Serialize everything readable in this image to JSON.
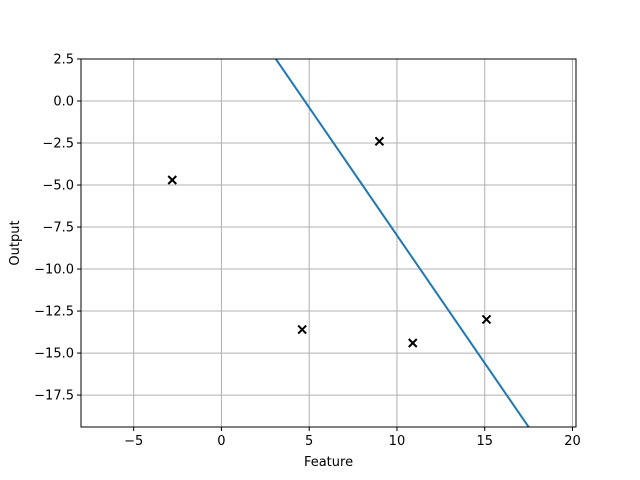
{
  "chart_data": {
    "type": "scatter",
    "title": "",
    "xlabel": "Feature",
    "ylabel": "Output",
    "xlim": [
      -8.0,
      20.2
    ],
    "ylim": [
      -19.4,
      2.5
    ],
    "xticks": [
      -5,
      0,
      5,
      10,
      15,
      20
    ],
    "xtick_labels": [
      "−5",
      "0",
      "5",
      "10",
      "15",
      "20"
    ],
    "yticks": [
      2.5,
      0.0,
      -2.5,
      -5.0,
      -7.5,
      -10.0,
      -12.5,
      -15.0,
      -17.5
    ],
    "ytick_labels": [
      "2.5",
      "0.0",
      "−2.5",
      "−5.0",
      "−7.5",
      "−10.0",
      "−12.5",
      "−15.0",
      "−17.5"
    ],
    "grid": true,
    "series": [
      {
        "kind": "scatter",
        "marker": "x",
        "color": "#000000",
        "points": [
          {
            "x": -2.8,
            "y": -4.7
          },
          {
            "x": 4.6,
            "y": -13.6
          },
          {
            "x": 9.0,
            "y": -2.4
          },
          {
            "x": 10.9,
            "y": -14.4
          },
          {
            "x": 15.1,
            "y": -13.0
          }
        ]
      },
      {
        "kind": "line",
        "color": "#1f77b4",
        "points": [
          {
            "x": 3.1,
            "y": 2.5
          },
          {
            "x": 17.5,
            "y": -19.4
          }
        ]
      }
    ]
  }
}
